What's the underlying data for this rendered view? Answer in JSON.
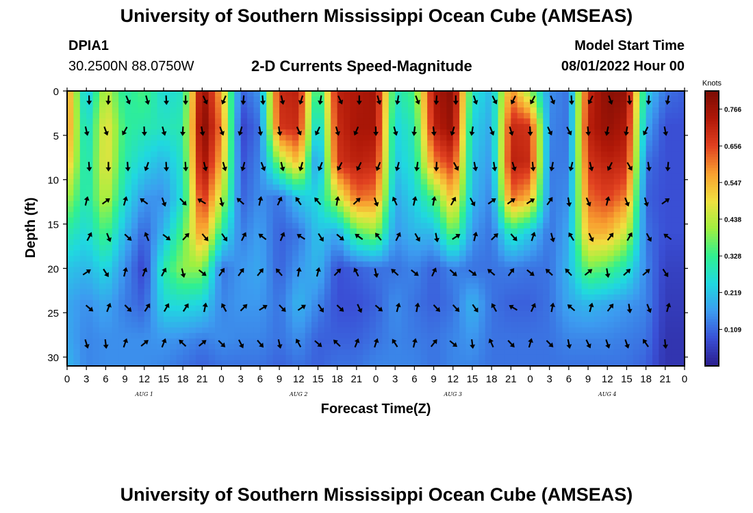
{
  "header": {
    "title": "University of Southern Mississippi Ocean Cube (AMSEAS)",
    "station_id": "DPIA1",
    "station_coords": "30.2500N  88.0750W",
    "subtitle": "2-D Currents Speed-Magnitude",
    "model_start_label": "Model Start Time",
    "model_start_value": "08/01/2022 Hour 00"
  },
  "footer": {
    "title": "University of Southern Mississippi Ocean Cube (AMSEAS)"
  },
  "chart_data": {
    "type": "heatmap",
    "title": "2-D Currents Speed-Magnitude",
    "xlabel": "Forecast Time(Z)",
    "ylabel": "Depth (ft)",
    "x_range_hours": [
      0,
      96
    ],
    "y_range_ft": [
      0,
      31
    ],
    "x_ticks": [
      {
        "hour": 0,
        "label": "0"
      },
      {
        "hour": 3,
        "label": "3"
      },
      {
        "hour": 6,
        "label": "6"
      },
      {
        "hour": 9,
        "label": "9"
      },
      {
        "hour": 12,
        "label": "12"
      },
      {
        "hour": 15,
        "label": "15"
      },
      {
        "hour": 18,
        "label": "18"
      },
      {
        "hour": 21,
        "label": "21"
      },
      {
        "hour": 24,
        "label": "0"
      },
      {
        "hour": 27,
        "label": "3"
      },
      {
        "hour": 30,
        "label": "6"
      },
      {
        "hour": 33,
        "label": "9"
      },
      {
        "hour": 36,
        "label": "12"
      },
      {
        "hour": 39,
        "label": "15"
      },
      {
        "hour": 42,
        "label": "18"
      },
      {
        "hour": 45,
        "label": "21"
      },
      {
        "hour": 48,
        "label": "0"
      },
      {
        "hour": 51,
        "label": "3"
      },
      {
        "hour": 54,
        "label": "6"
      },
      {
        "hour": 57,
        "label": "9"
      },
      {
        "hour": 60,
        "label": "12"
      },
      {
        "hour": 63,
        "label": "15"
      },
      {
        "hour": 66,
        "label": "18"
      },
      {
        "hour": 69,
        "label": "21"
      },
      {
        "hour": 72,
        "label": "0"
      },
      {
        "hour": 75,
        "label": "3"
      },
      {
        "hour": 78,
        "label": "6"
      },
      {
        "hour": 81,
        "label": "9"
      },
      {
        "hour": 84,
        "label": "12"
      },
      {
        "hour": 87,
        "label": "15"
      },
      {
        "hour": 90,
        "label": "18"
      },
      {
        "hour": 93,
        "label": "21"
      },
      {
        "hour": 96,
        "label": "0"
      }
    ],
    "y_ticks": [
      {
        "depth": 0,
        "label": "0"
      },
      {
        "depth": 5,
        "label": "5"
      },
      {
        "depth": 10,
        "label": "10"
      },
      {
        "depth": 15,
        "label": "15"
      },
      {
        "depth": 20,
        "label": "20"
      },
      {
        "depth": 25,
        "label": "25"
      },
      {
        "depth": 30,
        "label": "30"
      }
    ],
    "date_labels": [
      {
        "hour": 12,
        "label": "AUG 1"
      },
      {
        "hour": 36,
        "label": "AUG 2"
      },
      {
        "hour": 60,
        "label": "AUG 3"
      },
      {
        "hour": 84,
        "label": "AUG 4"
      }
    ],
    "colorbar": {
      "units": "Knots",
      "min": 0.0,
      "max": 0.82,
      "ticks": [
        0.766,
        0.656,
        0.547,
        0.438,
        0.328,
        0.219,
        0.109
      ],
      "tick_labels": [
        "0.766",
        "0.656",
        "0.547",
        "0.438",
        "0.328",
        "0.219",
        "0.109"
      ],
      "colors": [
        "#2a1c8c",
        "#3a50d6",
        "#3c9cf0",
        "#20d8e0",
        "#30f090",
        "#a0f040",
        "#f0e040",
        "#f8a030",
        "#e04020",
        "#b01808",
        "#7a0c04"
      ]
    },
    "speed_grid": {
      "hours": [
        0,
        3,
        6,
        9,
        12,
        15,
        18,
        21,
        24,
        27,
        30,
        33,
        36,
        39,
        42,
        45,
        48,
        51,
        54,
        57,
        60,
        63,
        66,
        69,
        72,
        75,
        78,
        81,
        84,
        87,
        90,
        93,
        96
      ],
      "depths_ft": [
        0,
        4,
        8,
        12,
        16,
        20,
        24,
        28,
        31
      ],
      "values_knots": [
        [
          0.6,
          0.6,
          0.55,
          0.42,
          0.3,
          0.22,
          0.18,
          0.18,
          0.2
        ],
        [
          0.2,
          0.24,
          0.26,
          0.28,
          0.25,
          0.2,
          0.15,
          0.14,
          0.14
        ],
        [
          0.45,
          0.5,
          0.5,
          0.45,
          0.35,
          0.25,
          0.18,
          0.15,
          0.15
        ],
        [
          0.3,
          0.32,
          0.3,
          0.26,
          0.2,
          0.15,
          0.13,
          0.15,
          0.15
        ],
        [
          0.35,
          0.3,
          0.24,
          0.16,
          0.1,
          0.06,
          0.1,
          0.15,
          0.15
        ],
        [
          0.25,
          0.28,
          0.2,
          0.15,
          0.2,
          0.3,
          0.25,
          0.16,
          0.14
        ],
        [
          0.28,
          0.3,
          0.28,
          0.27,
          0.35,
          0.4,
          0.26,
          0.15,
          0.12
        ],
        [
          0.8,
          0.82,
          0.78,
          0.7,
          0.6,
          0.4,
          0.24,
          0.13,
          0.1
        ],
        [
          0.55,
          0.6,
          0.55,
          0.45,
          0.3,
          0.12,
          0.14,
          0.15,
          0.12
        ],
        [
          0.1,
          0.06,
          0.08,
          0.1,
          0.13,
          0.16,
          0.16,
          0.14,
          0.12
        ],
        [
          0.16,
          0.12,
          0.14,
          0.15,
          0.17,
          0.18,
          0.16,
          0.14,
          0.12
        ],
        [
          0.7,
          0.68,
          0.4,
          0.12,
          0.1,
          0.1,
          0.12,
          0.12,
          0.1
        ],
        [
          0.72,
          0.7,
          0.55,
          0.22,
          0.12,
          0.16,
          0.2,
          0.15,
          0.12
        ],
        [
          0.28,
          0.2,
          0.12,
          0.25,
          0.22,
          0.2,
          0.14,
          0.1,
          0.1
        ],
        [
          0.72,
          0.7,
          0.68,
          0.45,
          0.18,
          0.08,
          0.08,
          0.1,
          0.12
        ],
        [
          0.74,
          0.75,
          0.72,
          0.62,
          0.35,
          0.1,
          0.08,
          0.1,
          0.12
        ],
        [
          0.76,
          0.75,
          0.7,
          0.6,
          0.4,
          0.12,
          0.1,
          0.12,
          0.14
        ],
        [
          0.28,
          0.24,
          0.22,
          0.18,
          0.16,
          0.12,
          0.15,
          0.14,
          0.14
        ],
        [
          0.35,
          0.3,
          0.28,
          0.24,
          0.2,
          0.14,
          0.12,
          0.13,
          0.14
        ],
        [
          0.74,
          0.72,
          0.6,
          0.35,
          0.2,
          0.1,
          0.1,
          0.12,
          0.12
        ],
        [
          0.8,
          0.78,
          0.68,
          0.55,
          0.38,
          0.14,
          0.12,
          0.14,
          0.14
        ],
        [
          0.28,
          0.24,
          0.22,
          0.2,
          0.16,
          0.12,
          0.2,
          0.16,
          0.14
        ],
        [
          0.2,
          0.18,
          0.16,
          0.14,
          0.12,
          0.12,
          0.12,
          0.12,
          0.12
        ],
        [
          0.6,
          0.7,
          0.72,
          0.62,
          0.3,
          0.13,
          0.1,
          0.12,
          0.12
        ],
        [
          0.4,
          0.68,
          0.7,
          0.55,
          0.22,
          0.12,
          0.1,
          0.12,
          0.12
        ],
        [
          0.15,
          0.14,
          0.13,
          0.13,
          0.12,
          0.12,
          0.12,
          0.12,
          0.12
        ],
        [
          0.12,
          0.12,
          0.13,
          0.15,
          0.18,
          0.2,
          0.18,
          0.14,
          0.12
        ],
        [
          0.7,
          0.72,
          0.68,
          0.62,
          0.55,
          0.38,
          0.2,
          0.14,
          0.12
        ],
        [
          0.8,
          0.78,
          0.72,
          0.66,
          0.55,
          0.35,
          0.18,
          0.14,
          0.12
        ],
        [
          0.78,
          0.74,
          0.7,
          0.6,
          0.45,
          0.28,
          0.16,
          0.13,
          0.12
        ],
        [
          0.24,
          0.18,
          0.12,
          0.1,
          0.12,
          0.14,
          0.14,
          0.12,
          0.1
        ],
        [
          0.12,
          0.08,
          0.08,
          0.08,
          0.08,
          0.06,
          0.05,
          0.04,
          0.04
        ],
        [
          0.1,
          0.08,
          0.08,
          0.08,
          0.08,
          0.06,
          0.05,
          0.04,
          0.04
        ]
      ]
    },
    "arrow_grid": {
      "hours": [
        3,
        6,
        9,
        12,
        15,
        18,
        21,
        24,
        27,
        30,
        33,
        36,
        39,
        42,
        45,
        48,
        51,
        54,
        57,
        60,
        63,
        66,
        69,
        72,
        75,
        78,
        81,
        84,
        87,
        90,
        93
      ],
      "depths_ft": [
        0.5,
        4,
        8,
        12,
        16,
        20,
        24,
        28
      ],
      "note": "direction in degrees clockwise from north (direction toward which the current flows)"
    }
  }
}
